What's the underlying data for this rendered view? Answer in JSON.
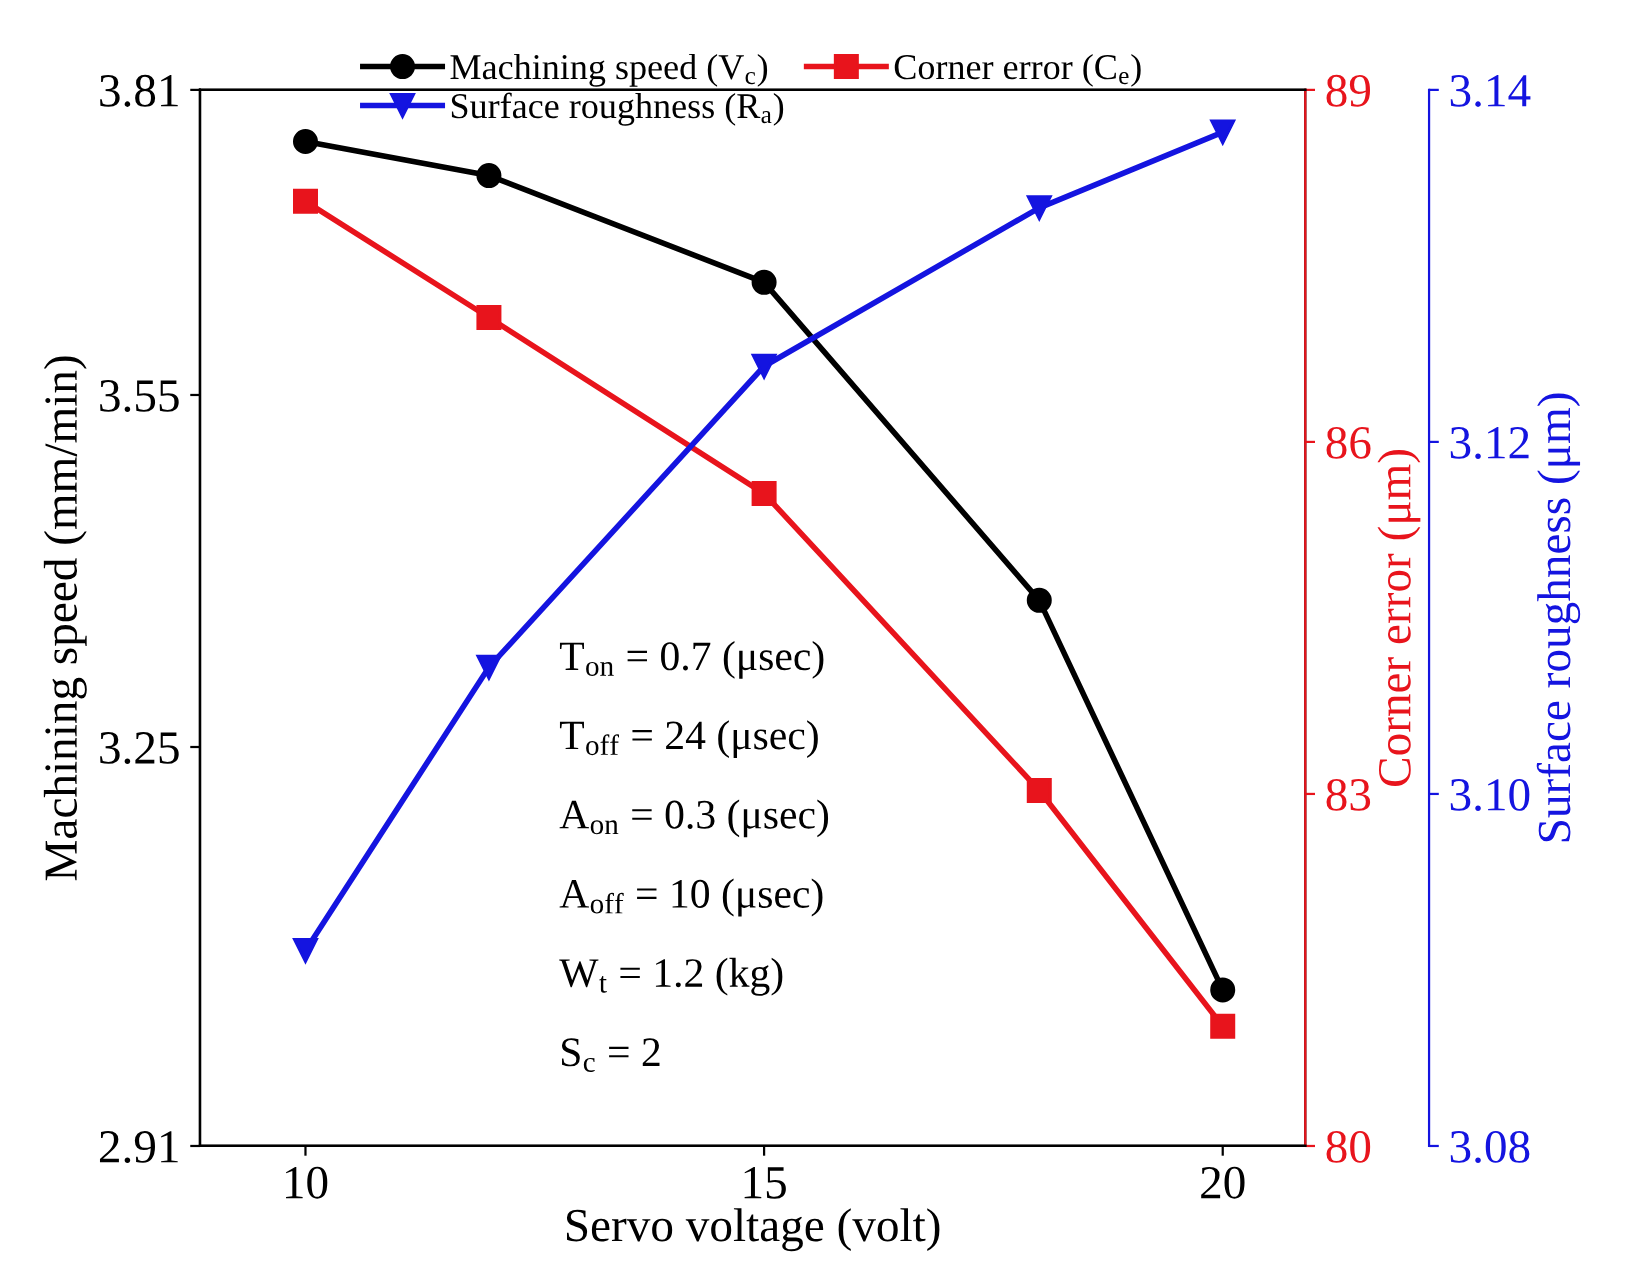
{
  "chart_data": {
    "type": "line",
    "xlabel": "Servo voltage (volt)",
    "ylabel": "Machining speed (mm/min)",
    "y2label": "Corner error (μm)",
    "y3label": "Surface roughness (μm)",
    "x": [
      10,
      12,
      15,
      18,
      20
    ],
    "xlim": [
      8.85,
      20.9
    ],
    "xticks": [
      10,
      15,
      20
    ],
    "ylim": [
      2.91,
      3.81
    ],
    "yticks": [
      2.91,
      3.25,
      3.55,
      3.81
    ],
    "y2lim": [
      80,
      89
    ],
    "y2ticks": [
      80,
      83,
      86,
      89
    ],
    "y3lim": [
      3.08,
      3.14
    ],
    "y3ticks": [
      {
        "value": 3.08,
        "label": "3.08"
      },
      {
        "value": 3.1,
        "label": "3.10"
      },
      {
        "value": 3.12,
        "label": "3.12"
      },
      {
        "value": 3.14,
        "label": "3.14"
      }
    ],
    "series": [
      {
        "name": "Machining speed (V$_{c}$)",
        "color": "#000000",
        "marker": "circle",
        "values": [
          3.766,
          3.737,
          3.646,
          3.375,
          3.043
        ]
      },
      {
        "name": "Corner error (C$_{e}$)",
        "color": "#e8141c",
        "marker": "square",
        "axis": "y2",
        "values": [
          88.05,
          87.06,
          85.56,
          83.03,
          81.02
        ]
      },
      {
        "name": "Surface roughness (R$_{a}$)",
        "color": "#1414e0",
        "marker": "triangle",
        "axis": "y3",
        "values": [
          3.0911,
          3.1072,
          3.1243,
          3.1333,
          3.1376
        ]
      }
    ],
    "annotations": [
      "T$_{on}$ = 0.7 (μsec)",
      "T$_{off}$ = 24 (μsec)",
      "A$_{on}$ = 0.3 (μsec)",
      "A$_{off}$ = 10 (μsec)",
      "W$_{t}$ = 1.2 (kg)",
      "S$_{c}$ = 2"
    ],
    "legend": "top",
    "grid": false,
    "line_style": "solid"
  }
}
